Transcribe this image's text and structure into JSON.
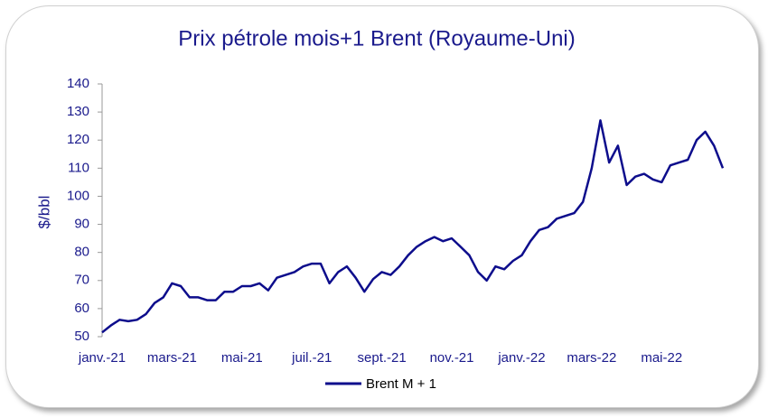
{
  "chart_data": {
    "type": "line",
    "title": "Prix pétrole mois+1 Brent (Royaume-Uni)",
    "y_label": "$/bbl",
    "categories": [
      "janv.-21",
      null,
      null,
      null,
      null,
      null,
      null,
      null,
      "mars-21",
      null,
      null,
      null,
      null,
      null,
      null,
      null,
      "mai-21",
      null,
      null,
      null,
      null,
      null,
      null,
      null,
      "juil.-21",
      null,
      null,
      null,
      null,
      null,
      null,
      null,
      "sept.-21",
      null,
      null,
      null,
      null,
      null,
      null,
      null,
      "nov.-21",
      null,
      null,
      null,
      null,
      null,
      null,
      null,
      "janv.-22",
      null,
      null,
      null,
      null,
      null,
      null,
      null,
      "mars-22",
      null,
      null,
      null,
      null,
      null,
      null,
      null,
      "mai-22",
      null,
      null,
      null,
      null,
      null,
      null,
      null
    ],
    "series": [
      {
        "name": "Brent M + 1",
        "color": "#0d0d8c",
        "values": [
          51.5,
          54,
          56,
          55.5,
          56,
          58,
          62,
          64,
          69,
          68,
          64,
          64,
          63,
          63,
          66,
          66,
          68,
          68,
          69,
          66.5,
          71,
          72,
          73,
          75,
          76,
          76,
          69,
          73,
          75,
          71,
          66,
          70.5,
          73,
          72,
          75,
          79,
          82,
          84,
          85.5,
          84,
          85,
          82,
          79,
          73,
          70,
          75,
          74,
          77,
          79,
          84,
          88,
          89,
          92,
          93,
          94,
          98,
          110,
          127,
          112,
          118,
          104,
          107,
          108,
          106,
          105,
          111,
          112,
          113,
          120,
          123,
          118,
          110
        ]
      }
    ],
    "ylim": [
      50,
      140
    ],
    "yticks": [
      50,
      60,
      70,
      80,
      90,
      100,
      110,
      120,
      130,
      140
    ]
  }
}
